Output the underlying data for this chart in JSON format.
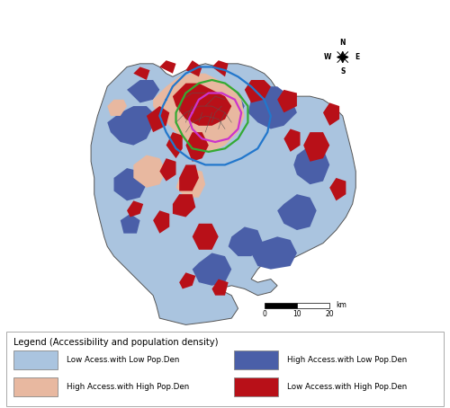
{
  "legend_title": "Legend (Accessibility and population density)",
  "legend_items": [
    {
      "label": "Low Acess.with Low Pop.Den",
      "color": "#aac4df"
    },
    {
      "label": "High Access.with Low Pop.Den",
      "color": "#4a5fa8"
    },
    {
      "label": "High Access.with High Pop.Den",
      "color": "#e8b8a0"
    },
    {
      "label": "Low Access.with High Pop.Den",
      "color": "#b81018"
    }
  ],
  "border_colors": {
    "blue": "#2277cc",
    "green": "#33aa33",
    "magenta": "#cc33cc"
  },
  "bg_color": "#ffffff",
  "map_bg": "#ffffff"
}
